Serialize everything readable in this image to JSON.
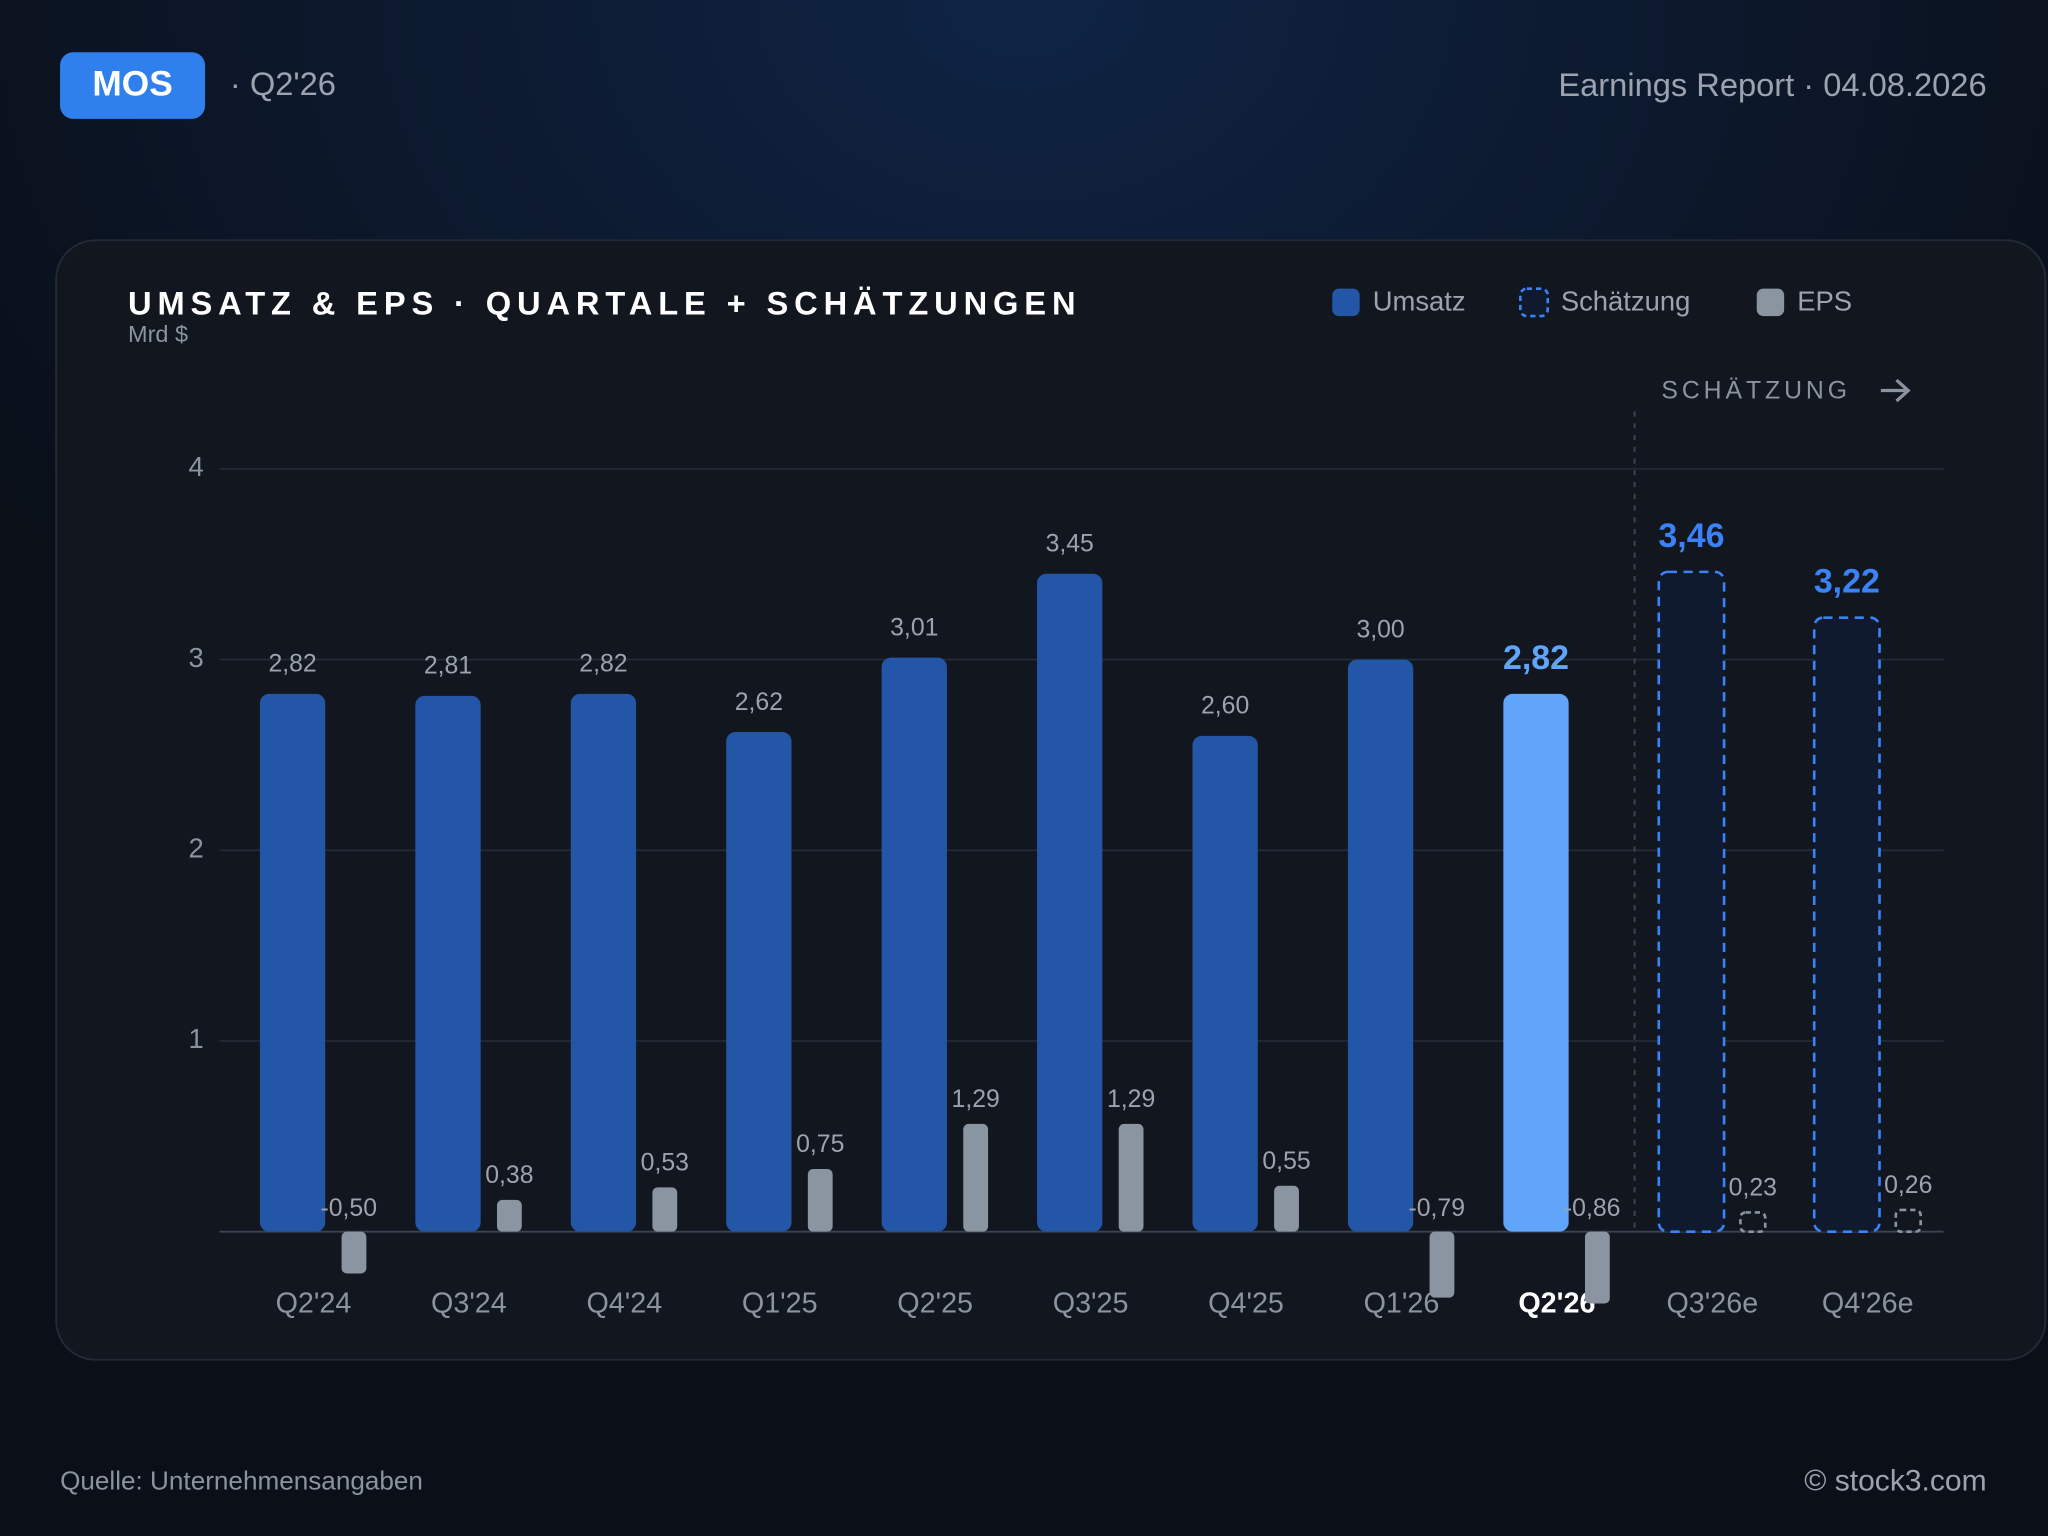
{
  "header": {
    "ticker": "MOS",
    "period": "· Q2'26",
    "report": "Earnings Report · 04.08.2026"
  },
  "chart_data": {
    "type": "bar",
    "title": "UMSATZ & EPS · QUARTALE + SCHÄTZUNGEN",
    "y_label": "Mrd $",
    "annotation": "SCHÄTZUNG",
    "categories": [
      "Q2'24",
      "Q3'24",
      "Q4'24",
      "Q1'25",
      "Q2'25",
      "Q3'25",
      "Q4'25",
      "Q1'26",
      "Q2'26",
      "Q3'26e",
      "Q4'26e"
    ],
    "highlight": "Q2'26",
    "highlight_color": "#60a5fa",
    "series": [
      {
        "name": "Umsatz",
        "color": "#2356a6",
        "values": [
          2.82,
          2.81,
          2.82,
          2.62,
          3.01,
          3.45,
          2.6,
          3.0,
          2.82,
          null,
          null
        ],
        "value_labels": [
          "2,82",
          "2,81",
          "2,82",
          "2,62",
          "3,01",
          "3,45",
          "2,60",
          "3,00",
          "2,82",
          null,
          null
        ]
      },
      {
        "name": "Schätzung",
        "color": "#3b82f6",
        "style": "dashed",
        "values": [
          null,
          null,
          null,
          null,
          null,
          null,
          null,
          null,
          null,
          3.46,
          3.22
        ],
        "value_labels": [
          null,
          null,
          null,
          null,
          null,
          null,
          null,
          null,
          null,
          "3,46",
          "3,22"
        ]
      },
      {
        "name": "EPS",
        "color": "#8b95a1",
        "values": [
          -0.5,
          0.38,
          0.53,
          0.75,
          1.29,
          1.29,
          0.55,
          -0.79,
          -0.86,
          0.23,
          0.26
        ],
        "value_labels": [
          "-0,50",
          "0,38",
          "0,53",
          "0,75",
          "1,29",
          "1,29",
          "0,55",
          "-0,79",
          "-0,86",
          "0,23",
          "0,26"
        ]
      }
    ],
    "ylim": [
      0,
      4
    ],
    "yticks": [
      1,
      2,
      3,
      4
    ],
    "grid": true
  },
  "footer": {
    "source": "Quelle: Unternehmensangaben",
    "copyright": "© stock3.com"
  }
}
